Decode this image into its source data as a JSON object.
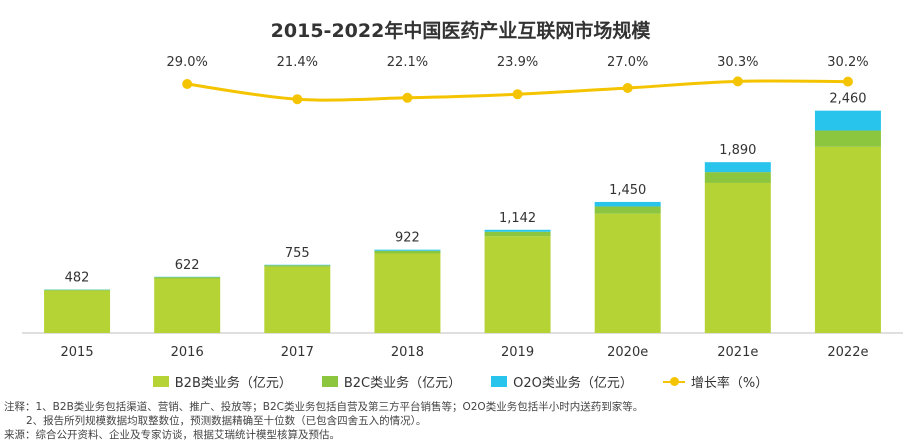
{
  "chart_data": {
    "type": "bar",
    "title": "2015-2022年中国医药产业互联网市场规模",
    "categories": [
      "2015",
      "2016",
      "2017",
      "2018",
      "2019",
      "2020e",
      "2021e",
      "2022e"
    ],
    "totals": [
      482,
      622,
      755,
      922,
      1142,
      1450,
      1890,
      2460
    ],
    "total_labels": [
      "482",
      "622",
      "755",
      "922",
      "1,142",
      "1,450",
      "1,890",
      "2,460"
    ],
    "series": [
      {
        "name": "B2B类业务（亿元）",
        "color": "#b5d334",
        "values": [
          467,
          603,
          732,
          880,
          1070,
          1320,
          1660,
          2060
        ]
      },
      {
        "name": "B2C类业务（亿元）",
        "color": "#8cc63f",
        "values": [
          12,
          15,
          18,
          30,
          50,
          80,
          120,
          180
        ]
      },
      {
        "name": "O2O类业务（亿元）",
        "color": "#28c4ec",
        "values": [
          3,
          4,
          5,
          12,
          22,
          50,
          110,
          220
        ]
      }
    ],
    "line_series": {
      "name": "增长率（%）",
      "color": "#f5c400",
      "values": [
        29.0,
        21.4,
        22.1,
        23.9,
        27.0,
        30.3,
        30.2
      ],
      "labels": [
        "29.0%",
        "21.4%",
        "22.1%",
        "23.9%",
        "27.0%",
        "30.3%",
        "30.2%"
      ],
      "categories": [
        "2016",
        "2017",
        "2018",
        "2019",
        "2020e",
        "2021e",
        "2022e"
      ]
    },
    "ylim": [
      0,
      2600
    ],
    "grid": false,
    "legend_position": "bottom"
  },
  "notes": {
    "line1": "注释：1、B2B类业务包括渠道、营销、推广、投放等；B2C类业务包括自营及第三方平台销售等；O2O类业务包括半小时内送药到家等。",
    "line2": "2、报告所列规模数据均取整数位，预测数据精确至十位数（已包含四舍五入的情况）。",
    "line3": "来源：综合公开资料、企业及专家访谈，根据艾瑞统计模型核算及预估。"
  }
}
